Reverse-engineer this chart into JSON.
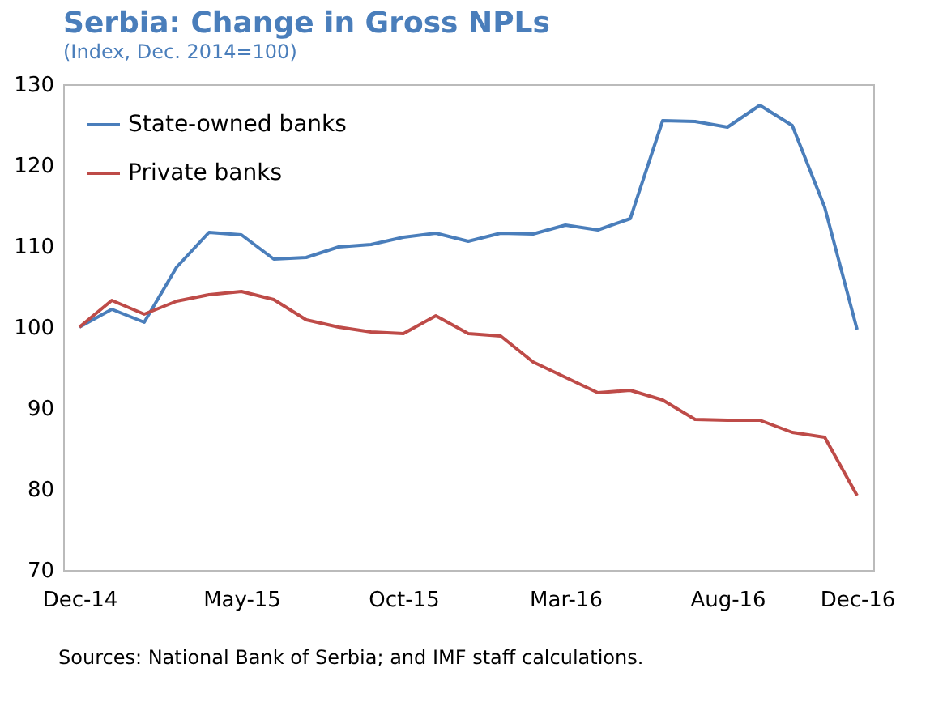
{
  "chart_data": {
    "type": "line",
    "title": "Serbia: Change in Gross NPLs",
    "subtitle": "(Index, Dec. 2014=100)",
    "categories": [
      "Dec-14",
      null,
      null,
      null,
      null,
      "May-15",
      null,
      null,
      null,
      null,
      "Oct-15",
      null,
      null,
      null,
      null,
      "Mar-16",
      null,
      null,
      null,
      null,
      "Aug-16",
      null,
      null,
      null,
      "Dec-16"
    ],
    "series": [
      {
        "name": "State-owned banks",
        "color": "#4a7ebb",
        "values": [
          100,
          102.2,
          100.6,
          107.4,
          111.7,
          111.4,
          108.4,
          108.6,
          109.9,
          110.2,
          111.1,
          111.6,
          110.6,
          111.6,
          111.5,
          112.6,
          112.0,
          113.4,
          125.5,
          125.4,
          124.7,
          127.4,
          124.9,
          114.8,
          99.7
        ]
      },
      {
        "name": "Private banks",
        "color": "#be4b48",
        "values": [
          100,
          103.3,
          101.6,
          103.2,
          104.0,
          104.4,
          103.4,
          100.9,
          100,
          99.4,
          99.2,
          101.4,
          99.2,
          98.9,
          95.7,
          93.8,
          91.9,
          92.2,
          91.0,
          88.6,
          88.5,
          88.5,
          87.0,
          86.4,
          79.2
        ]
      }
    ],
    "ylim": [
      70,
      130
    ],
    "yticks": [
      70,
      80,
      90,
      100,
      110,
      120,
      130
    ],
    "grid": false,
    "legend": "top left",
    "annotations": [
      "Sources: National Bank of Serbia; and IMF staff calculations."
    ]
  }
}
